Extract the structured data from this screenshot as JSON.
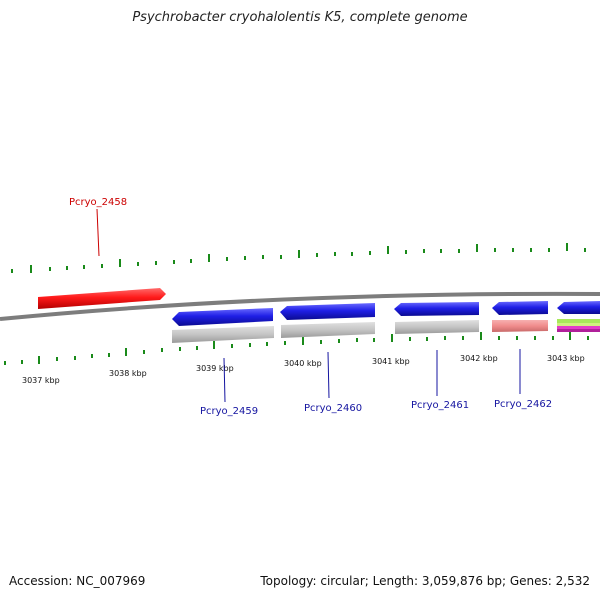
{
  "title": "Psychrobacter cryohalolentis K5, complete genome",
  "footer": {
    "accession": "Accession: NC_007969",
    "summary": "Topology: circular; Length: 3,059,876 bp; Genes: 2,532"
  },
  "ticks": [
    "3037 kbp",
    "3038 kbp",
    "3039 kbp",
    "3040 kbp",
    "3041 kbp",
    "3042 kbp",
    "3043 kbp"
  ],
  "genes": [
    {
      "label": "Pcryo_2458",
      "strand": "forward",
      "color": "#ff1a1a",
      "label_color": "#cc0000"
    },
    {
      "label": "Pcryo_2459",
      "strand": "reverse",
      "color": "#1f1fe6",
      "label_color": "#1414a0"
    },
    {
      "label": "Pcryo_2460",
      "strand": "reverse",
      "color": "#1f1fe6",
      "label_color": "#1414a0"
    },
    {
      "label": "Pcryo_2461",
      "strand": "reverse",
      "color": "#1f1fe6",
      "label_color": "#1414a0"
    },
    {
      "label": "Pcryo_2462",
      "strand": "reverse",
      "color": "#1f1fe6",
      "label_color": "#1414a0"
    }
  ],
  "colors": {
    "backbone": "#8a8a8a",
    "feature_gray": "#c4c4c4",
    "feature_pink": "#f08c8c",
    "tick_green": "#1a8a1a"
  }
}
